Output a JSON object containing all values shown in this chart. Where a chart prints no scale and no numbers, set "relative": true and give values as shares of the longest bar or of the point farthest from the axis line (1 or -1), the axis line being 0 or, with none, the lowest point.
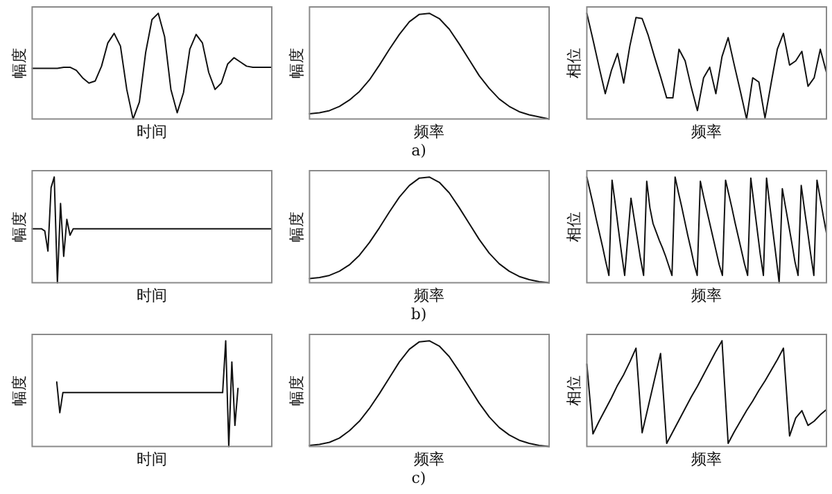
{
  "chart_data": [
    {
      "type": "line",
      "xlabel": "时间",
      "ylabel": "幅度",
      "relative": true,
      "tick_labels": false,
      "color": "#111111",
      "categories": [
        null,
        null,
        null,
        null,
        null,
        null,
        null,
        null,
        null,
        null,
        null,
        null,
        null,
        null,
        null,
        null,
        null,
        null,
        null,
        null,
        null,
        null,
        null,
        null,
        null,
        null,
        null,
        null,
        null,
        null,
        null,
        null,
        null,
        null,
        null,
        null,
        null,
        null,
        null
      ],
      "values": [
        0.48,
        0.48,
        0.48,
        0.48,
        0.48,
        0.49,
        0.49,
        0.46,
        0.39,
        0.34,
        0.36,
        0.5,
        0.72,
        0.81,
        0.69,
        0.28,
        0,
        0.16,
        0.63,
        0.94,
        1,
        0.78,
        0.28,
        0.06,
        0.25,
        0.66,
        0.8,
        0.72,
        0.44,
        0.28,
        0.34,
        0.52,
        0.58,
        0.54,
        0.5,
        0.49,
        0.49,
        0.49,
        0.49
      ]
    },
    {
      "type": "line",
      "xlabel": "频率",
      "ylabel": "幅度",
      "relative": true,
      "tick_labels": false,
      "color": "#111111",
      "annotations": [
        "a)"
      ],
      "categories": [
        null,
        null,
        null,
        null,
        null,
        null,
        null,
        null,
        null,
        null,
        null,
        null,
        null,
        null,
        null,
        null,
        null,
        null,
        null,
        null,
        null,
        null,
        null,
        null,
        null
      ],
      "values": [
        0.05,
        0.06,
        0.08,
        0.12,
        0.18,
        0.26,
        0.37,
        0.51,
        0.66,
        0.8,
        0.92,
        0.99,
        1,
        0.95,
        0.85,
        0.71,
        0.56,
        0.41,
        0.29,
        0.19,
        0.12,
        0.07,
        0.04,
        0.02,
        0
      ]
    },
    {
      "type": "line",
      "xlabel": "频率",
      "ylabel": "相位",
      "relative": true,
      "tick_labels": false,
      "color": "#111111",
      "categories": [
        null,
        null,
        null,
        null,
        null,
        null,
        null,
        null,
        null,
        null,
        null,
        null,
        null,
        null,
        null,
        null,
        null,
        null,
        null,
        null,
        null,
        null,
        null,
        null,
        null,
        null,
        null,
        null,
        null,
        null,
        null,
        null,
        null,
        null,
        null,
        null,
        null,
        null,
        null,
        null
      ],
      "values": [
        1,
        0.75,
        0.49,
        0.24,
        0.46,
        0.62,
        0.34,
        0.69,
        0.96,
        0.95,
        0.79,
        0.59,
        0.4,
        0.2,
        0.2,
        0.66,
        0.55,
        0.3,
        0.08,
        0.39,
        0.49,
        0.24,
        0.59,
        0.77,
        0.51,
        0.26,
        0,
        0.39,
        0.35,
        0.01,
        0.34,
        0.66,
        0.81,
        0.51,
        0.55,
        0.64,
        0.31,
        0.39,
        0.66,
        0.44
      ]
    },
    {
      "type": "line",
      "xlabel": "时间",
      "ylabel": "幅度",
      "relative": true,
      "tick_labels": false,
      "color": "#111111",
      "categories": [
        null,
        null,
        null,
        null,
        null,
        null,
        null,
        null,
        null,
        null,
        null,
        null,
        null,
        null,
        null,
        null,
        null,
        null,
        null,
        null,
        null,
        null,
        null,
        null,
        null,
        null,
        null,
        null,
        null,
        null,
        null,
        null,
        null,
        null,
        null,
        null,
        null,
        null,
        null,
        null,
        null,
        null,
        null,
        null,
        null,
        null,
        null,
        null,
        null,
        null,
        null,
        null,
        null,
        null,
        null,
        null,
        null,
        null,
        null,
        null,
        null,
        null,
        null,
        null,
        null,
        null,
        null,
        null,
        null,
        null,
        null,
        null,
        null,
        null,
        null,
        null,
        null
      ],
      "values": [
        0.51,
        0.51,
        0.51,
        0.51,
        0.49,
        0.3,
        0.9,
        1,
        0,
        0.75,
        0.25,
        0.6,
        0.45,
        0.51,
        0.51,
        0.51,
        0.51,
        0.51,
        0.51,
        0.51,
        0.51,
        0.51,
        0.51,
        0.51,
        0.51,
        0.51,
        0.51,
        0.51,
        0.51,
        0.51,
        0.51,
        0.51,
        0.51,
        0.51,
        0.51,
        0.51,
        0.51,
        0.51,
        0.51,
        0.51,
        0.51,
        0.51,
        0.51,
        0.51,
        0.51,
        0.51,
        0.51,
        0.51,
        0.51,
        0.51,
        0.51,
        0.51,
        0.51,
        0.51,
        0.51,
        0.51,
        0.51,
        0.51,
        0.51,
        0.51,
        0.51,
        0.51,
        0.51,
        0.51,
        0.51,
        0.51,
        0.51,
        0.51,
        0.51,
        0.51,
        0.51,
        0.51,
        0.51,
        0.51,
        0.51,
        0.51,
        0.51
      ]
    },
    {
      "type": "line",
      "xlabel": "频率",
      "ylabel": "幅度",
      "relative": true,
      "tick_labels": false,
      "color": "#111111",
      "annotations": [
        "b)"
      ],
      "categories": [
        null,
        null,
        null,
        null,
        null,
        null,
        null,
        null,
        null,
        null,
        null,
        null,
        null,
        null,
        null,
        null,
        null,
        null,
        null,
        null,
        null,
        null,
        null,
        null,
        null
      ],
      "values": [
        0.04,
        0.05,
        0.07,
        0.11,
        0.17,
        0.26,
        0.38,
        0.52,
        0.67,
        0.81,
        0.92,
        0.99,
        1,
        0.95,
        0.85,
        0.71,
        0.56,
        0.41,
        0.28,
        0.18,
        0.11,
        0.06,
        0.03,
        0.01,
        0
      ]
    },
    {
      "type": "line",
      "xlabel": "频率",
      "ylabel": "相位",
      "relative": true,
      "tick_labels": false,
      "color": "#111111",
      "categories": [
        null,
        null,
        null,
        null,
        null,
        null,
        null,
        null,
        null,
        null,
        null,
        null,
        null,
        null,
        null,
        null,
        null,
        null,
        null,
        null,
        null,
        null,
        null,
        null,
        null,
        null,
        null,
        null,
        null,
        null,
        null,
        null,
        null,
        null,
        null,
        null,
        null,
        null,
        null,
        null,
        null,
        null,
        null,
        null,
        null,
        null,
        null,
        null,
        null,
        null,
        null,
        null,
        null,
        null,
        null,
        null,
        null,
        null,
        null,
        null,
        null,
        null,
        null,
        null,
        null,
        null,
        null,
        null,
        null,
        null,
        null,
        null,
        null,
        null,
        null,
        null,
        null
      ],
      "values": [
        1,
        0.87,
        0.74,
        0.6,
        0.47,
        0.34,
        0.2,
        0.07,
        0.97,
        0.75,
        0.51,
        0.28,
        0.07,
        0.43,
        0.8,
        0.61,
        0.42,
        0.23,
        0.07,
        0.96,
        0.71,
        0.56,
        0.48,
        0.4,
        0.33,
        0.25,
        0.16,
        0.07,
        1,
        0.86,
        0.73,
        0.59,
        0.45,
        0.32,
        0.18,
        0.07,
        0.96,
        0.82,
        0.69,
        0.56,
        0.43,
        0.3,
        0.17,
        0.07,
        0.97,
        0.84,
        0.71,
        0.57,
        0.44,
        0.31,
        0.18,
        0.07,
        0.99,
        0.75,
        0.51,
        0.27,
        0.07,
        0.99,
        0.74,
        0.49,
        0.25,
        0,
        0.89,
        0.72,
        0.55,
        0.38,
        0.2,
        0.07,
        0.92,
        0.7,
        0.49,
        0.27,
        0.07,
        0.97,
        0.8,
        0.63,
        0.47
      ]
    },
    {
      "type": "line",
      "xlabel": "时间",
      "ylabel": "幅度",
      "relative": true,
      "tick_labels": false,
      "color": "#111111",
      "categories": [
        null,
        null,
        null,
        null,
        null,
        null,
        null,
        null,
        null,
        null,
        null,
        null,
        null,
        null,
        null,
        null,
        null,
        null,
        null,
        null,
        null,
        null,
        null,
        null,
        null,
        null,
        null,
        null,
        null,
        null,
        null,
        null,
        null,
        null,
        null,
        null,
        null,
        null,
        null,
        null,
        null,
        null,
        null,
        null,
        null,
        null,
        null,
        null,
        null,
        null,
        null,
        null,
        null,
        null,
        null,
        null,
        null,
        null,
        null,
        null,
        null,
        null,
        null,
        null,
        null,
        null,
        null,
        null,
        null,
        null,
        null,
        null,
        null,
        null,
        null,
        null,
        null,
        null,
        null
      ],
      "values": [
        null,
        null,
        null,
        null,
        null,
        null,
        null,
        null,
        0.61,
        0.32,
        0.51,
        0.51,
        0.51,
        0.51,
        0.51,
        0.51,
        0.51,
        0.51,
        0.51,
        0.51,
        0.51,
        0.51,
        0.51,
        0.51,
        0.51,
        0.51,
        0.51,
        0.51,
        0.51,
        0.51,
        0.51,
        0.51,
        0.51,
        0.51,
        0.51,
        0.51,
        0.51,
        0.51,
        0.51,
        0.51,
        0.51,
        0.51,
        0.51,
        0.51,
        0.51,
        0.51,
        0.51,
        0.51,
        0.51,
        0.51,
        0.51,
        0.51,
        0.51,
        0.51,
        0.51,
        0.51,
        0.51,
        0.51,
        0.51,
        0.51,
        0.51,
        0.51,
        0.51,
        1,
        0,
        0.8,
        0.2,
        0.55,
        null,
        null,
        null,
        null,
        null,
        null,
        null,
        null,
        null,
        null,
        null
      ]
    },
    {
      "type": "line",
      "xlabel": "频率",
      "ylabel": "幅度",
      "relative": true,
      "tick_labels": false,
      "color": "#111111",
      "annotations": [
        "c)"
      ],
      "categories": [
        null,
        null,
        null,
        null,
        null,
        null,
        null,
        null,
        null,
        null,
        null,
        null,
        null,
        null,
        null,
        null,
        null,
        null,
        null,
        null,
        null,
        null,
        null,
        null,
        null
      ],
      "values": [
        0.01,
        0.02,
        0.04,
        0.08,
        0.15,
        0.24,
        0.36,
        0.5,
        0.65,
        0.8,
        0.92,
        0.99,
        1,
        0.95,
        0.85,
        0.71,
        0.56,
        0.41,
        0.28,
        0.18,
        0.11,
        0.06,
        0.03,
        0.01,
        0
      ]
    },
    {
      "type": "line",
      "xlabel": "频率",
      "ylabel": "相位",
      "relative": true,
      "tick_labels": false,
      "color": "#111111",
      "categories": [
        null,
        null,
        null,
        null,
        null,
        null,
        null,
        null,
        null,
        null,
        null,
        null,
        null,
        null,
        null,
        null,
        null,
        null,
        null,
        null,
        null,
        null,
        null,
        null,
        null,
        null,
        null,
        null,
        null,
        null,
        null,
        null,
        null,
        null,
        null,
        null,
        null,
        null,
        null,
        null
      ],
      "values": [
        0.78,
        0.12,
        0.24,
        0.35,
        0.46,
        0.58,
        0.68,
        0.8,
        0.93,
        0.13,
        0.38,
        0.63,
        0.88,
        0.03,
        0.14,
        0.25,
        0.36,
        0.47,
        0.57,
        0.68,
        0.79,
        0.9,
        1,
        0.03,
        0.14,
        0.24,
        0.34,
        0.43,
        0.53,
        0.62,
        0.72,
        0.82,
        0.93,
        0.1,
        0.27,
        0.34,
        0.2,
        0.24,
        0.3,
        0.35
      ]
    }
  ]
}
